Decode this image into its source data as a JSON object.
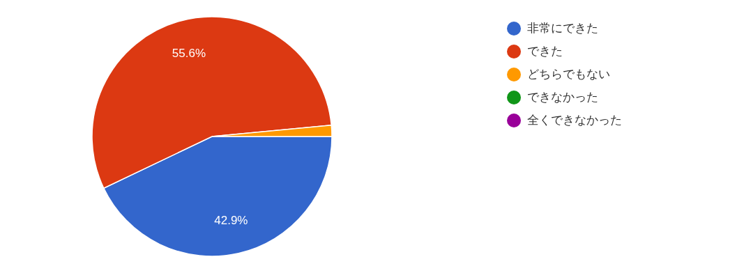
{
  "chart_data": {
    "type": "pie",
    "categories": [
      "非常にできた",
      "できた",
      "どちらでもない",
      "できなかった",
      "全くできなかった"
    ],
    "values": [
      42.9,
      55.6,
      1.5,
      0,
      0
    ],
    "colors": [
      "#3366cc",
      "#dc3912",
      "#ff9900",
      "#109618",
      "#990099"
    ],
    "value_labels": [
      "42.9%",
      "55.6%",
      null,
      null,
      null
    ],
    "legend": "right"
  }
}
